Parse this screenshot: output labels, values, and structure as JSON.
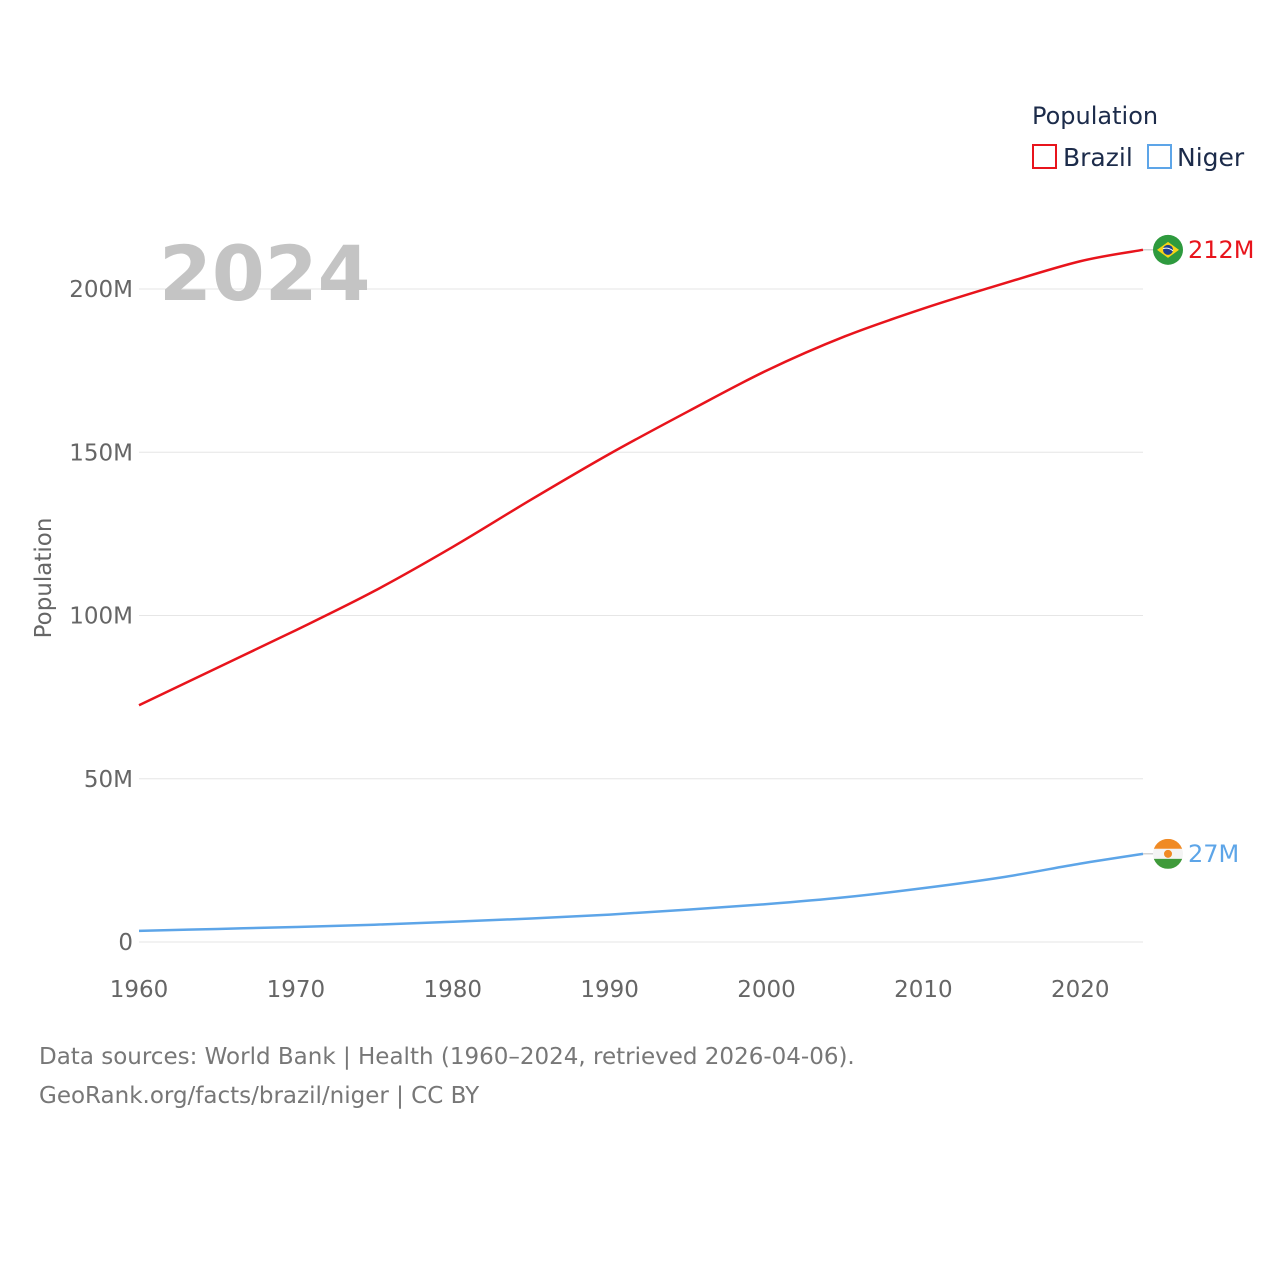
{
  "chart_data": {
    "type": "line",
    "title": "",
    "year_display": "2024",
    "xlabel": "",
    "ylabel": "Population",
    "xlim": [
      1960,
      2024
    ],
    "ylim": [
      0,
      200000000
    ],
    "x_ticks": [
      1960,
      1970,
      1980,
      1990,
      2000,
      2010,
      2020
    ],
    "y_ticks": [
      {
        "value": 0,
        "label": "0"
      },
      {
        "value": 50000000,
        "label": "50M"
      },
      {
        "value": 100000000,
        "label": "100M"
      },
      {
        "value": 150000000,
        "label": "150M"
      },
      {
        "value": 200000000,
        "label": "200M"
      }
    ],
    "legend": {
      "title": "Population",
      "placement": "top-right"
    },
    "series": [
      {
        "name": "Brazil",
        "color": "#e8141c",
        "end_label": "212M",
        "flag": "brazil-flag",
        "points": [
          [
            1960,
            72.5
          ],
          [
            1965,
            84.0
          ],
          [
            1970,
            95.5
          ],
          [
            1975,
            107.5
          ],
          [
            1980,
            121.0
          ],
          [
            1985,
            135.5
          ],
          [
            1990,
            149.5
          ],
          [
            1995,
            162.5
          ],
          [
            2000,
            175.0
          ],
          [
            2005,
            185.5
          ],
          [
            2010,
            194.0
          ],
          [
            2015,
            201.5
          ],
          [
            2020,
            208.5
          ],
          [
            2024,
            212.0
          ]
        ]
      },
      {
        "name": "Niger",
        "color": "#5da5e8",
        "end_label": "27M",
        "flag": "niger-flag",
        "points": [
          [
            1960,
            3.4
          ],
          [
            1965,
            4.0
          ],
          [
            1970,
            4.6
          ],
          [
            1975,
            5.3
          ],
          [
            1980,
            6.2
          ],
          [
            1985,
            7.2
          ],
          [
            1990,
            8.4
          ],
          [
            1995,
            9.9
          ],
          [
            2000,
            11.6
          ],
          [
            2005,
            13.7
          ],
          [
            2010,
            16.5
          ],
          [
            2015,
            19.8
          ],
          [
            2020,
            24.0
          ],
          [
            2024,
            27.0
          ]
        ]
      }
    ]
  },
  "footer": {
    "line1": "Data sources: World Bank | Health (1960–2024, retrieved 2026-04-06).",
    "line2": "GeoRank.org/facts/brazil/niger | CC BY"
  }
}
